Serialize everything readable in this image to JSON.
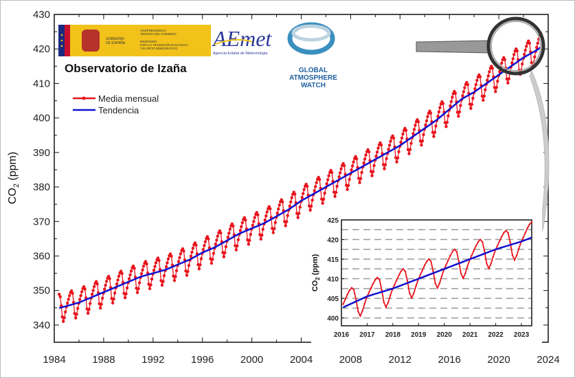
{
  "chart_data": [
    {
      "type": "line",
      "title": "Observatorio de Izaña",
      "xlabel": "",
      "ylabel": "CO2 (ppm)",
      "xlim": [
        1984,
        2024
      ],
      "ylim": [
        335,
        430
      ],
      "xticks": [
        1984,
        1988,
        1992,
        1996,
        2000,
        2004,
        2008,
        2012,
        2016,
        2020,
        2024
      ],
      "yticks": [
        340,
        350,
        360,
        370,
        380,
        390,
        400,
        410,
        420,
        430
      ],
      "grid": false,
      "legend_placement": "top-left",
      "legend": [
        "Media mensual",
        "Tendencia"
      ],
      "series_colors": {
        "Media mensual": "#e8141c",
        "Tendencia": "#1010d0"
      },
      "data_range": [
        1984.4,
        2023.4
      ],
      "trend_jan1": {
        "years": [
          1984,
          1985,
          1986,
          1987,
          1988,
          1989,
          1990,
          1991,
          1992,
          1993,
          1994,
          1995,
          1996,
          1997,
          1998,
          1999,
          2000,
          2001,
          2002,
          2003,
          2004,
          2005,
          2006,
          2007,
          2008,
          2009,
          2010,
          2011,
          2012,
          2013,
          2014,
          2015,
          2016,
          2017,
          2018,
          2019,
          2020,
          2021,
          2022,
          2023,
          2024
        ],
        "values": [
          344.5,
          345.5,
          346.5,
          348,
          349.5,
          351,
          352.5,
          354,
          355,
          356,
          357.5,
          359,
          361,
          362.5,
          364.5,
          366.5,
          368,
          369.5,
          371.5,
          373.5,
          376,
          378,
          380,
          382,
          384,
          386,
          388,
          390,
          392,
          394.5,
          397,
          399.5,
          402.5,
          405.5,
          407.5,
          410,
          412.5,
          415,
          417.5,
          419.5,
          422
        ]
      },
      "monthly_seasonal_offset": [
        0.8,
        1.8,
        2.8,
        3.6,
        4.0,
        3.2,
        0.5,
        -2.8,
        -4.2,
        -3.2,
        -1.6,
        -0.2
      ]
    },
    {
      "type": "line",
      "xlabel": "",
      "ylabel": "CO2 (ppm)",
      "xlim": [
        2016,
        2023.4
      ],
      "ylim": [
        398,
        425
      ],
      "xticks": [
        2016,
        2017,
        2018,
        2019,
        2020,
        2021,
        2022,
        2023
      ],
      "yticks": [
        400,
        405,
        410,
        415,
        420,
        425
      ],
      "grid": "dashed horizontal every 2.5 ppm",
      "series": "same as main chart, 2016-2023"
    }
  ],
  "logos": {
    "gobierno": "GOBIERNO DE ESPAÑA",
    "ministerio": "VICEPRESIDENCIA TERCERA DEL GOBIERNO · MINISTERIO PARA LA TRANSICIÓN ECOLÓGICA Y EL RETO DEMOGRÁFICO",
    "aemet": "AEmet",
    "aemet_sub": "Agencia Estatal de Meteorología",
    "gaw": [
      "GLOBAL",
      "ATMOSPHERE",
      "WATCH"
    ]
  },
  "labels": {
    "title": "Observatorio de Izaña",
    "ylabel_main": "CO",
    "ylabel_sub": "2",
    "ylabel_unit": " (ppm)",
    "legend_monthly": "Media mensual",
    "legend_trend": "Tendencia"
  }
}
